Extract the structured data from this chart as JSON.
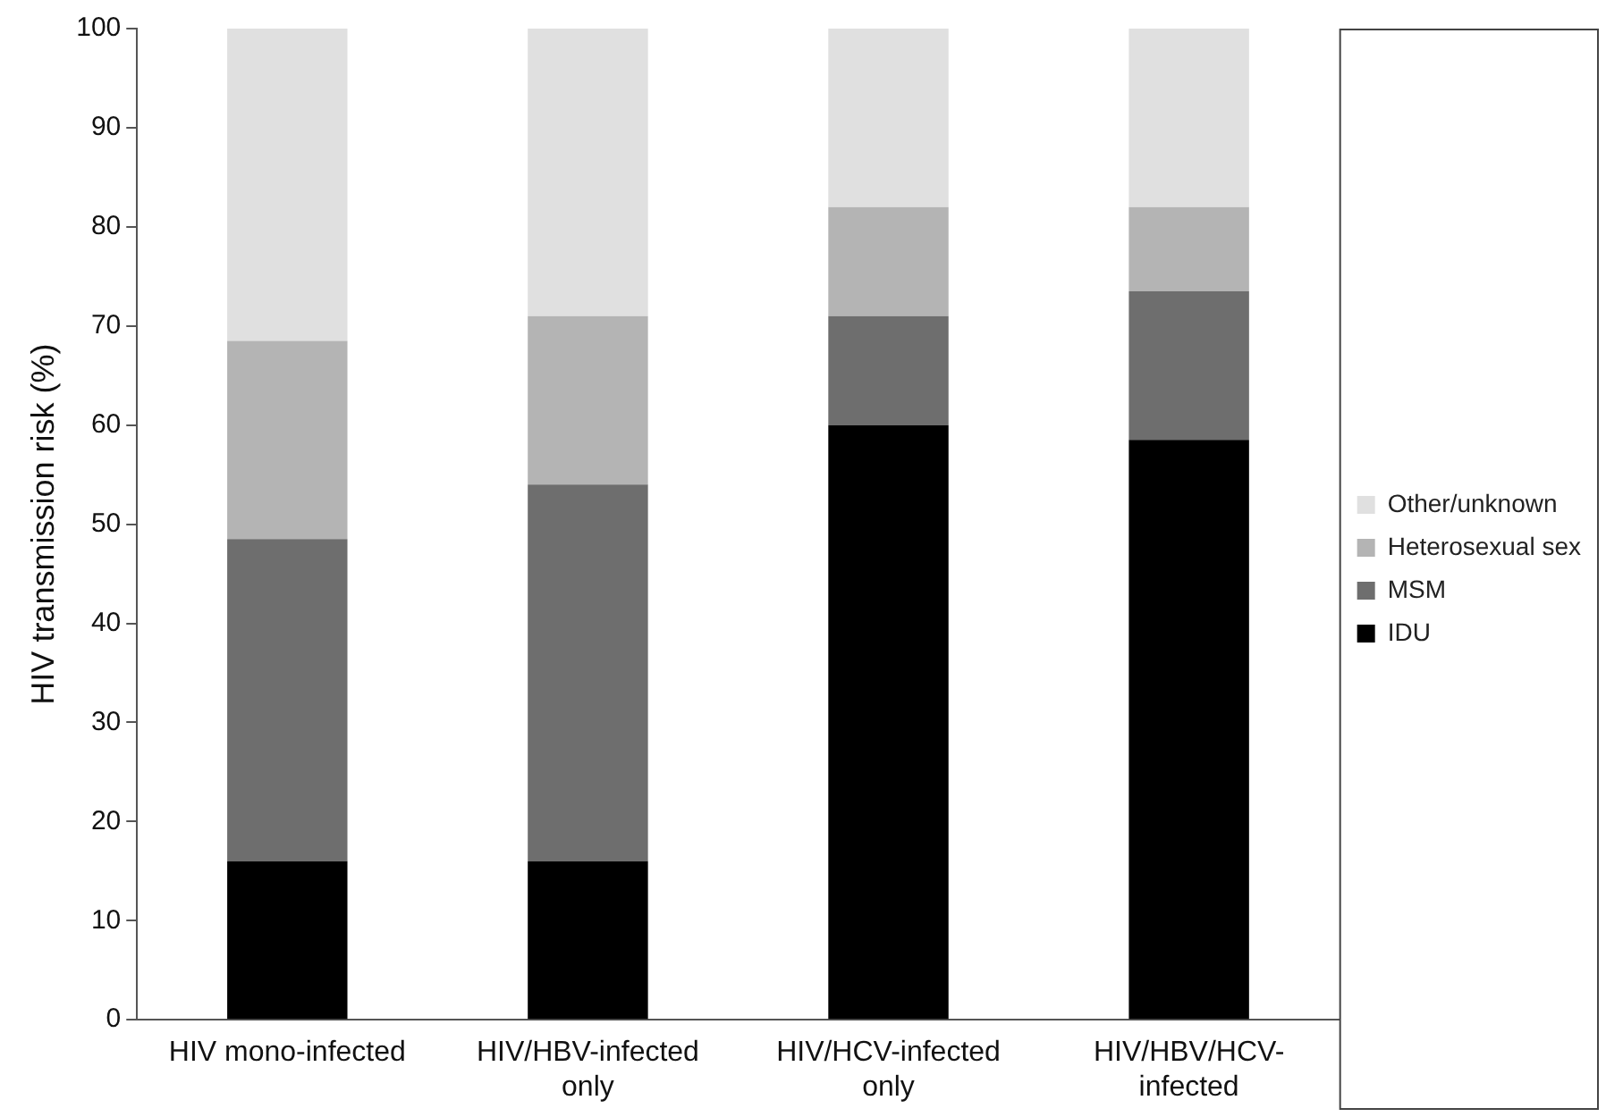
{
  "chart_data": {
    "type": "bar",
    "stacked": true,
    "ylabel": "HIV transmission risk (%)",
    "categories": [
      "HIV mono-infected",
      "HIV/HBV-infected only",
      "HIV/HCV-infected only",
      "HIV/HBV/HCV-infected"
    ],
    "series": [
      {
        "name": "IDU",
        "color": "#000000",
        "values": [
          16,
          16,
          60,
          58.5
        ]
      },
      {
        "name": "MSM",
        "color": "#6e6e6e",
        "values": [
          32.5,
          38,
          11,
          15
        ]
      },
      {
        "name": "Heterosexual sex",
        "color": "#b4b4b4",
        "values": [
          20,
          17,
          11,
          8.5
        ]
      },
      {
        "name": "Other/unknown",
        "color": "#e0e0e0",
        "values": [
          31.5,
          29,
          18,
          18
        ]
      }
    ],
    "ylim": [
      0,
      100
    ],
    "yticks": [
      0,
      10,
      20,
      30,
      40,
      50,
      60,
      70,
      80,
      90,
      100
    ],
    "grid": false,
    "legend": "right"
  }
}
